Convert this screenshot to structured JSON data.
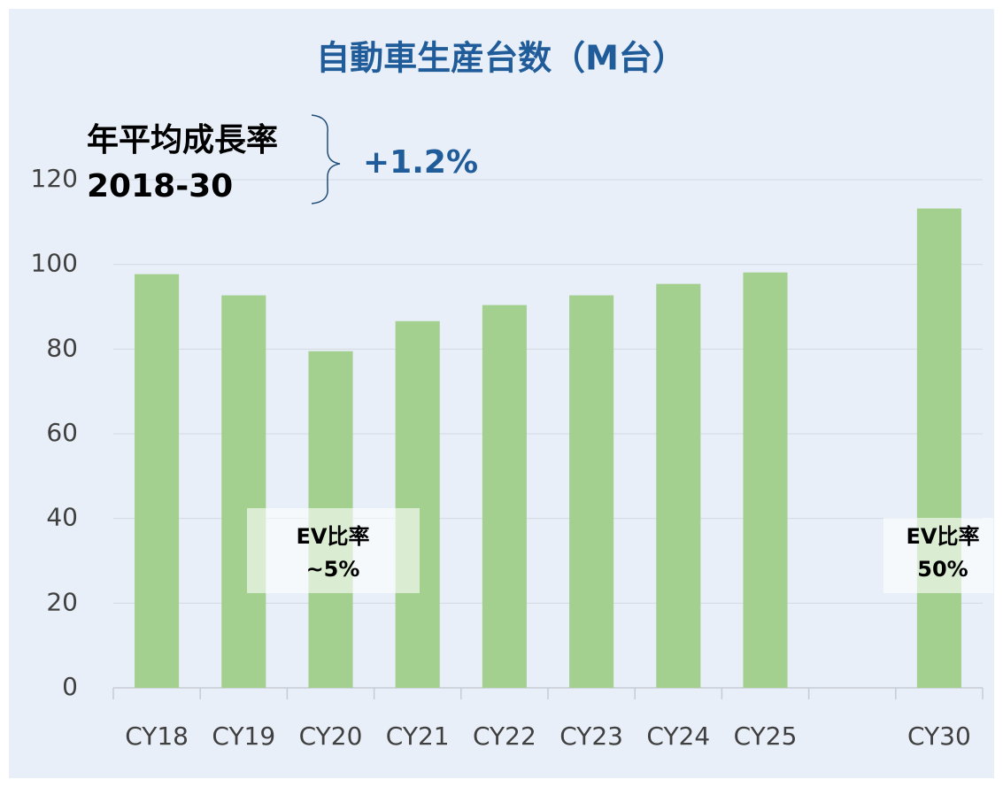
{
  "chart_data": {
    "type": "bar",
    "title": "自動車生産台数（M台）",
    "categories": [
      "CY18",
      "CY19",
      "CY20",
      "CY21",
      "CY22",
      "CY23",
      "CY24",
      "CY25",
      null,
      "CY30"
    ],
    "values": [
      97.7,
      92.7,
      79.5,
      86.6,
      90.4,
      92.7,
      95.4,
      98.1,
      null,
      113.2
    ],
    "color": "#a3cf8f",
    "ylim": [
      0,
      120
    ],
    "yticks": [
      0,
      20,
      40,
      60,
      80,
      100,
      120
    ],
    "grid": true,
    "annotations": {
      "cagr_label": [
        "年平均成長率",
        "2018-30"
      ],
      "cagr_value": "+1.2%",
      "ev_notes": [
        [
          "EV比率",
          "~5%"
        ],
        [
          "EV比率",
          "50%"
        ]
      ]
    }
  }
}
